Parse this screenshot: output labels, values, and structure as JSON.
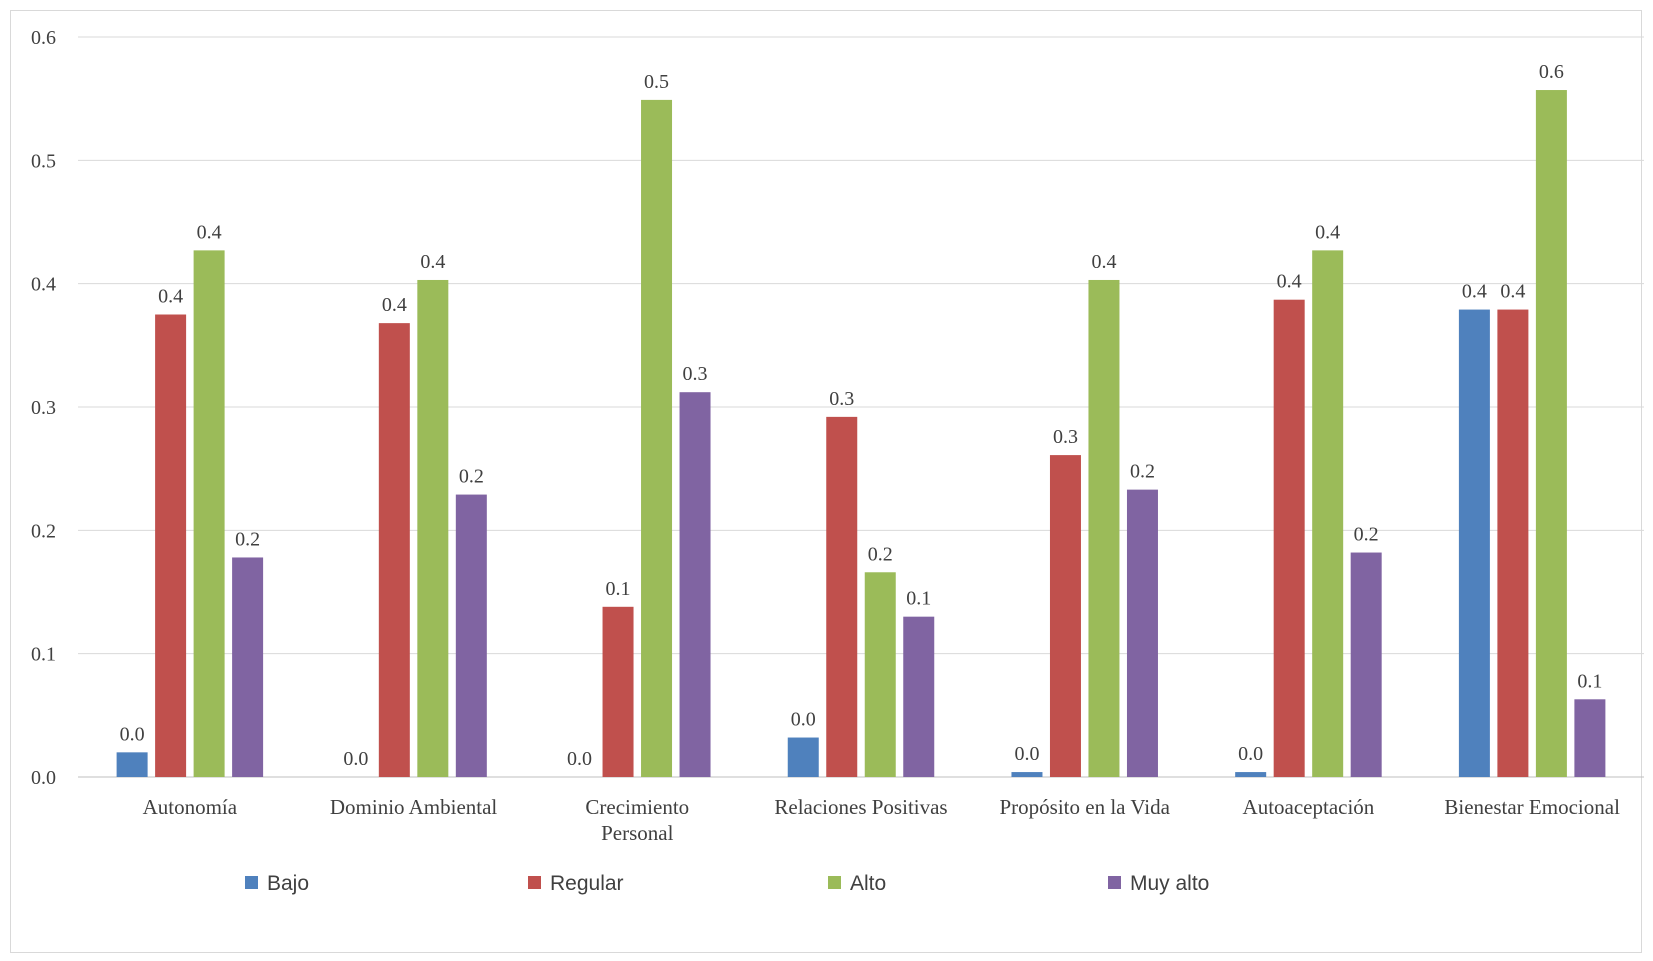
{
  "chart_data": {
    "type": "bar",
    "categories": [
      [
        "Autonomía"
      ],
      [
        "Dominio Ambiental"
      ],
      [
        "Crecimiento",
        "Personal"
      ],
      [
        "Relaciones Positivas"
      ],
      [
        "Propósito en la Vida"
      ],
      [
        "Autoaceptación"
      ],
      [
        "Bienestar Emocional"
      ]
    ],
    "series": [
      {
        "name": "Bajo",
        "color": "#4f81bd",
        "values": [
          0.02,
          0.0,
          0.0,
          0.032,
          0.004,
          0.004,
          0.379
        ],
        "labels": [
          "0.0",
          "0.0",
          "0.0",
          "0.0",
          "0.0",
          "0.0",
          "0.4"
        ]
      },
      {
        "name": "Regular",
        "color": "#c0504d",
        "values": [
          0.375,
          0.368,
          0.138,
          0.292,
          0.261,
          0.387,
          0.379
        ],
        "labels": [
          "0.4",
          "0.4",
          "0.1",
          "0.3",
          "0.3",
          "0.4",
          "0.4"
        ]
      },
      {
        "name": "Alto",
        "color": "#9bbb59",
        "values": [
          0.427,
          0.403,
          0.549,
          0.166,
          0.403,
          0.427,
          0.557
        ],
        "labels": [
          "0.4",
          "0.4",
          "0.5",
          "0.2",
          "0.4",
          "0.4",
          "0.6"
        ]
      },
      {
        "name": "Muy alto",
        "color": "#8064a2",
        "values": [
          0.178,
          0.229,
          0.312,
          0.13,
          0.233,
          0.182,
          0.063
        ],
        "labels": [
          "0.2",
          "0.2",
          "0.3",
          "0.1",
          "0.2",
          "0.2",
          "0.1"
        ]
      }
    ],
    "yticks": [
      "0.0",
      "0.1",
      "0.2",
      "0.3",
      "0.4",
      "0.5",
      "0.6"
    ],
    "ylim": [
      0,
      0.6
    ],
    "grid": true,
    "legend_position": "bottom",
    "title": "",
    "xlabel": "",
    "ylabel": ""
  }
}
